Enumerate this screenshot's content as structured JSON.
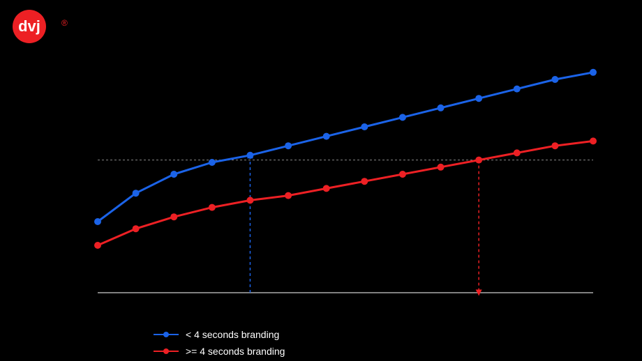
{
  "logo": {
    "text": "dvj",
    "trademark": "®",
    "circle_color": "#ED2024",
    "text_color": "#FFFFFF",
    "trademark_color": "#ED2024",
    "fontsize": 22
  },
  "chart": {
    "type": "line",
    "background_color": "#000000",
    "axis_color": "#FFFFFF",
    "axis_width": 1,
    "reference_line": {
      "y": 0.56,
      "color": "#888888",
      "dash": "3,3",
      "width": 1
    },
    "indicators": [
      {
        "series": "a",
        "x_index": 4,
        "color": "#1B63E8",
        "up": true
      },
      {
        "series": "b",
        "x_index": 10,
        "color": "#ED2024",
        "up": false
      }
    ],
    "series": [
      {
        "id": "a",
        "color": "#1B63E8",
        "line_width": 3,
        "marker_radius": 5,
        "y": [
          0.3,
          0.42,
          0.5,
          0.55,
          0.58,
          0.62,
          0.66,
          0.7,
          0.74,
          0.78,
          0.82,
          0.86,
          0.9,
          0.93
        ]
      },
      {
        "id": "b",
        "color": "#ED2024",
        "line_width": 3,
        "marker_radius": 5,
        "y": [
          0.2,
          0.27,
          0.32,
          0.36,
          0.39,
          0.41,
          0.44,
          0.47,
          0.5,
          0.53,
          0.56,
          0.59,
          0.62,
          0.64
        ]
      }
    ],
    "x_count": 14,
    "y_range": [
      0,
      1
    ]
  },
  "legend": {
    "text_color": "#FFFFFF",
    "items": [
      {
        "label": "< 4 seconds branding",
        "color": "#1B63E8"
      },
      {
        "label": ">= 4 seconds branding",
        "color": "#ED2024"
      }
    ]
  }
}
